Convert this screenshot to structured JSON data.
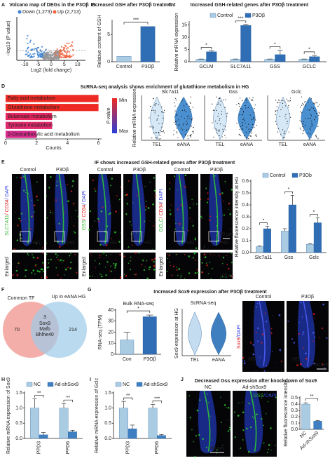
{
  "panel_labels": [
    "A",
    "B",
    "C",
    "D",
    "E",
    "F",
    "G",
    "H",
    "I",
    "J"
  ],
  "volcano": {
    "title": "Volcano map of DEGs in the P3Oβ",
    "legend": [
      {
        "label": "Down (1,273)",
        "color": "#3a7fd0"
      },
      {
        "label": "Up (2,713)",
        "color": "#f0603a"
      }
    ],
    "xlabel": "Log2 (fold change)",
    "ylabel": "−log10 (P value)",
    "xlim": [
      -13,
      13
    ],
    "xticks": [
      -10,
      -5,
      0,
      5,
      10
    ]
  },
  "violins_D": {
    "ylabel": "Relative mRNA expression",
    "genes": [
      "Slc7a11",
      "Gss",
      "Gclc"
    ],
    "groups": [
      "TEL",
      "eANA"
    ]
  },
  "if_E": {
    "conditions": [
      "Control",
      "P3Oβ"
    ],
    "stains": [
      [
        {
          "text": "SLC7A11",
          "color": "#2fb52f"
        },
        {
          "text": "/ CD34",
          "color": "#e02020"
        },
        {
          "text": "/ DAPI",
          "color": "#3040e0"
        }
      ],
      [
        {
          "text": "GSS",
          "color": "#2fb52f"
        },
        {
          "text": "/ CD34",
          "color": "#e02020"
        },
        {
          "text": "/ DAPI",
          "color": "#3040e0"
        }
      ],
      [
        {
          "text": "GCLC",
          "color": "#2fb52f"
        },
        {
          "text": "/ CD34",
          "color": "#e02020"
        },
        {
          "text": "/ DAPI",
          "color": "#3040e0"
        }
      ]
    ],
    "region": "HG",
    "enlarged": "Enlarged",
    "scale_bars": [
      "20 μm",
      "10 μm"
    ]
  },
  "venn_F": {
    "sets": [
      {
        "label": "Common TF",
        "count": 70,
        "color": "#f08c84"
      },
      {
        "label": "Up in eANA HG",
        "count": 214,
        "color": "#9ccbea"
      }
    ],
    "overlap": 3,
    "genes": [
      "Sox9",
      "Mafb",
      "Bhlhe40"
    ]
  },
  "violin_G": {
    "title": "ScRNA-seq",
    "ylabel": "Sox9 expression at HG",
    "groups": [
      "TEL",
      "eANA"
    ]
  },
  "if_G": {
    "conditions": [
      "Control",
      "P3Oβ"
    ],
    "stain": [
      {
        "text": "Sox9",
        "color": "#e02020"
      },
      {
        "text": "/DAPI",
        "color": "#3040e0"
      }
    ],
    "region": "HG",
    "scale_bar": "50 μm"
  },
  "if_J": {
    "conditions": [
      "NC",
      "Ad-shSox9"
    ],
    "stain": [
      {
        "text": "GSS",
        "color": "#2fb52f"
      },
      {
        "text": "/DAPI",
        "color": "#3040e0"
      }
    ],
    "scale_bar": "50 μm"
  },
  "chart_data": [
    {
      "type": "bar",
      "title": "Increased GSH after P3Oβ treatment",
      "ylabel": "Relative content of GSH",
      "categories": [
        "Control",
        "P3Oβ"
      ],
      "values": [
        1,
        6.5
      ],
      "colors": [
        "#a9cce3",
        "#2f6db5"
      ],
      "ylim": [
        0,
        7.5
      ],
      "yticks": [
        0,
        5
      ],
      "significance": "***"
    },
    {
      "type": "bar",
      "title": "Increased GSH-related genes after P3Oβ treatment",
      "ylabel": "Relative mRNA expression",
      "categories": [
        "GCLM",
        "SLC7A11",
        "GSS",
        "GCLC"
      ],
      "series": [
        {
          "name": "Control",
          "color": "#a9cce3",
          "values": [
            1,
            1,
            1,
            1
          ],
          "errors": [
            0.1,
            0.1,
            0.1,
            0.1
          ]
        },
        {
          "name": "P3Oβ",
          "color": "#2f6db5",
          "values": [
            4.1,
            14.8,
            2.9,
            2.1
          ],
          "errors": [
            0.3,
            0.4,
            1.8,
            0.5
          ]
        }
      ],
      "ylim": [
        0,
        16
      ],
      "yticks": [
        0,
        5,
        10,
        15
      ],
      "significance": [
        "*",
        "***",
        "*",
        "*"
      ]
    },
    {
      "type": "barh",
      "title": "ScRNA-seq analysis shows enrichment of glutathione metabolism in HG",
      "categories": [
        "Fatty acid metabolism",
        "Glutathione metabolism",
        "Butanoate metabolism",
        "Tyrosine metabolism",
        "2-Oxocarboxylic acid metabolism"
      ],
      "values": [
        6,
        6,
        3,
        3,
        2
      ],
      "colors": [
        "#ee2a24",
        "#ee2a24",
        "#e5265f",
        "#e02a6e",
        "#d62b8c"
      ],
      "label_colors": [
        "#222222",
        "#e8332b",
        "#222222",
        "#222222",
        "#222222"
      ],
      "xlim": [
        0,
        6.2
      ],
      "xticks": [
        0,
        2,
        4,
        6
      ],
      "xlabel": "Counts",
      "legend": {
        "title": "P value",
        "min": "Min",
        "max": "Max",
        "colors": [
          "#ee2a24",
          "#2b3fd6"
        ]
      }
    },
    {
      "type": "bar",
      "title": "IF shows increased GSH-related genes after P3Oβ treatment",
      "ylabel": "Relative fluorescence intensity at HG",
      "categories": [
        "Slc7a11",
        "Gss",
        "Gclc"
      ],
      "series": [
        {
          "name": "Control",
          "color": "#a9cce3",
          "values": [
            0.05,
            0.18,
            0.07
          ],
          "errors": [
            0.005,
            0.02,
            0.005
          ]
        },
        {
          "name": "P3Ob",
          "color": "#2f6db5",
          "values": [
            0.2,
            0.4,
            0.25
          ],
          "errors": [
            0.02,
            0.08,
            0.04
          ]
        }
      ],
      "ylim": [
        0,
        0.6
      ],
      "yticks": [
        {
          "value": 0,
          "label": "0.0"
        },
        0.1,
        0.2,
        0.3,
        0.4,
        0.5,
        0.6
      ],
      "significance": [
        "*",
        "*",
        "*"
      ]
    },
    {
      "type": "bar",
      "title": "Increased Sox9 expression after P3Oβ treatment",
      "subtitle": "Bulk RNA-seq",
      "ylabel": "RNA-seq (TPM)",
      "categories": [
        "Con",
        "P3Oβ"
      ],
      "values": [
        13,
        34
      ],
      "errors": [
        7,
        1.5
      ],
      "colors": [
        "#a9cce3",
        "#2f6db5"
      ],
      "ylim": [
        0,
        40
      ],
      "yticks": [
        0,
        10,
        20,
        30,
        40
      ],
      "significance": "*"
    },
    {
      "type": "bar",
      "ylabel": "Relative mRNA expression of Sox9",
      "categories": [
        "PPD3",
        "PPD6"
      ],
      "series": [
        {
          "name": "NC",
          "color": "#a9cce3",
          "values": [
            1,
            1
          ],
          "errors": [
            0.3,
            0.15
          ]
        },
        {
          "name": "Ad-shSox9",
          "color": "#3d7fc1",
          "values": [
            0.12,
            0.22
          ],
          "errors": [
            0.08,
            0.05
          ]
        }
      ],
      "ylim": [
        0,
        1.5
      ],
      "yticks": [
        {
          "value": 0,
          "label": "0.0"
        },
        0.5,
        {
          "value": 1,
          "label": "1.0"
        },
        1.5
      ],
      "significance": [
        "**",
        "**"
      ]
    },
    {
      "type": "bar",
      "ylabel": "Relative mRNA expression of Gclc",
      "categories": [
        "PPD3",
        "PPD6"
      ],
      "series": [
        {
          "name": "NC",
          "color": "#a9cce3",
          "values": [
            1,
            1
          ],
          "errors": [
            0.22,
            0.12
          ]
        },
        {
          "name": "Ad-shSox9",
          "color": "#3d7fc1",
          "values": [
            0.32,
            0.1
          ],
          "errors": [
            0.12,
            0.03
          ]
        }
      ],
      "ylim": [
        0,
        1.5
      ],
      "yticks": [
        {
          "value": 0,
          "label": "0.0"
        },
        0.5,
        {
          "value": 1,
          "label": "1.0"
        },
        1.5
      ],
      "significance": [
        "**",
        "***"
      ]
    },
    {
      "type": "bar",
      "title": "Decreased Gss expression after knockdown of Sox9",
      "ylabel": "Relative fluorescence intensity",
      "categories": [
        "NC",
        "Ad-shSox9"
      ],
      "values": [
        0.4,
        0.13
      ],
      "errors": [
        0.02,
        0.01
      ],
      "colors": [
        "#a9cce3",
        "#3d7fc1"
      ],
      "ylim": [
        0,
        0.5
      ],
      "yticks": [
        {
          "value": 0,
          "label": "0.0"
        },
        0.1,
        0.2,
        0.3,
        0.4,
        0.5
      ],
      "significance": "**"
    }
  ]
}
